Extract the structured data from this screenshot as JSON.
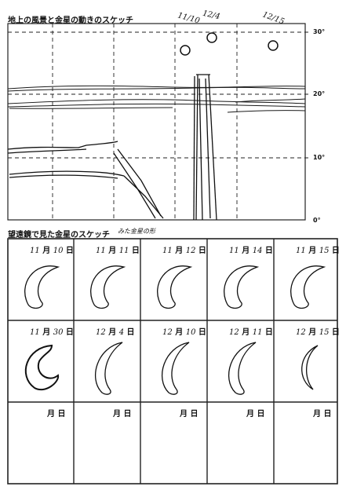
{
  "landscape_section": {
    "title": "地上の風景と金星の動きのスケッチ",
    "angle_labels": [
      "30°",
      "20°",
      "10°",
      "0°"
    ],
    "observation_labels": [
      "11/10",
      "12/4",
      "12/15"
    ]
  },
  "telescope_section": {
    "title": "望遠鏡で見た金星のスケッチ",
    "note": "みた金星の形",
    "month_unit": "月",
    "day_unit": "日",
    "cells": [
      {
        "month": "11",
        "day": "10",
        "phase": "crescent-wide"
      },
      {
        "month": "11",
        "day": "11",
        "phase": "crescent-wide"
      },
      {
        "month": "11",
        "day": "12",
        "phase": "crescent-wide"
      },
      {
        "month": "11",
        "day": "14",
        "phase": "crescent-wide"
      },
      {
        "month": "11",
        "day": "15",
        "phase": "crescent-wide"
      },
      {
        "month": "11",
        "day": "30",
        "phase": "crescent-scribble"
      },
      {
        "month": "12",
        "day": "4",
        "phase": "crescent-tall"
      },
      {
        "month": "12",
        "day": "10",
        "phase": "crescent-tall"
      },
      {
        "month": "12",
        "day": "11",
        "phase": "crescent-tall"
      },
      {
        "month": "12",
        "day": "15",
        "phase": "crescent-thin"
      },
      {
        "month": "",
        "day": "",
        "phase": "empty"
      },
      {
        "month": "",
        "day": "",
        "phase": "empty"
      },
      {
        "month": "",
        "day": "",
        "phase": "empty"
      },
      {
        "month": "",
        "day": "",
        "phase": "empty"
      },
      {
        "month": "",
        "day": "",
        "phase": "empty"
      }
    ]
  }
}
